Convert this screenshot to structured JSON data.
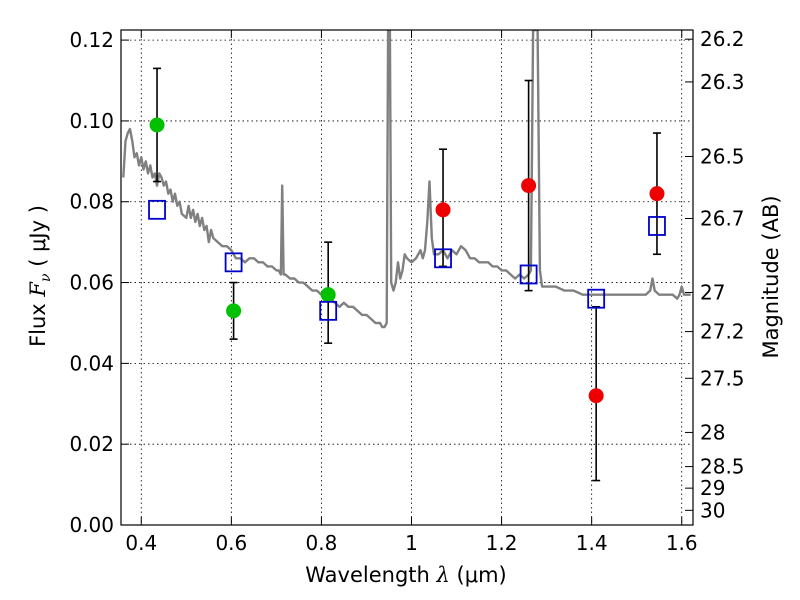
{
  "chart_data": {
    "type": "scatter",
    "xlabel_prefix": "Wavelength",
    "xlabel_symbol": "λ",
    "xlabel_unit": "(μm)",
    "ylabel_prefix": "Flux",
    "ylabel_symbol": "F",
    "ylabel_subscript": "ν",
    "ylabel_unit": "( μJy )",
    "y2label": "Magnitude (AB)",
    "xlim": [
      0.355,
      1.625
    ],
    "ylim": [
      0.0,
      0.1225
    ],
    "grid": true,
    "x_ticks": [
      {
        "value": 0.4,
        "label": "0.4"
      },
      {
        "value": 0.6,
        "label": "0.6"
      },
      {
        "value": 0.8,
        "label": "0.8"
      },
      {
        "value": 1.0,
        "label": "1"
      },
      {
        "value": 1.2,
        "label": "1.2"
      },
      {
        "value": 1.4,
        "label": "1.4"
      },
      {
        "value": 1.6,
        "label": "1.6"
      }
    ],
    "y_ticks": [
      {
        "value": 0.0,
        "label": "0.00"
      },
      {
        "value": 0.02,
        "label": "0.02"
      },
      {
        "value": 0.04,
        "label": "0.04"
      },
      {
        "value": 0.06,
        "label": "0.06"
      },
      {
        "value": 0.08,
        "label": "0.08"
      },
      {
        "value": 0.1,
        "label": "0.10"
      },
      {
        "value": 0.12,
        "label": "0.12"
      }
    ],
    "mag_ticks": [
      {
        "value": 26.2,
        "label": "26.2"
      },
      {
        "value": 26.3,
        "label": "26.3"
      },
      {
        "value": 26.5,
        "label": "26.5"
      },
      {
        "value": 26.7,
        "label": "26.7"
      },
      {
        "value": 27.0,
        "label": "27"
      },
      {
        "value": 27.2,
        "label": "27.2"
      },
      {
        "value": 27.5,
        "label": "27.5"
      },
      {
        "value": 28.0,
        "label": "28"
      },
      {
        "value": 28.5,
        "label": "28.5"
      },
      {
        "value": 29.0,
        "label": "29"
      },
      {
        "value": 30.0,
        "label": "30"
      }
    ],
    "model_spectrum": {
      "name": "model SED",
      "color": "#808080",
      "points": [
        [
          0.36,
          0.086
        ],
        [
          0.365,
          0.095
        ],
        [
          0.37,
          0.097
        ],
        [
          0.375,
          0.098
        ],
        [
          0.38,
          0.095
        ],
        [
          0.385,
          0.091
        ],
        [
          0.39,
          0.092
        ],
        [
          0.395,
          0.089
        ],
        [
          0.4,
          0.091
        ],
        [
          0.405,
          0.088
        ],
        [
          0.41,
          0.09
        ],
        [
          0.415,
          0.087
        ],
        [
          0.42,
          0.089
        ],
        [
          0.425,
          0.086
        ],
        [
          0.43,
          0.087
        ],
        [
          0.435,
          0.084
        ],
        [
          0.44,
          0.087
        ],
        [
          0.445,
          0.086
        ],
        [
          0.45,
          0.084
        ],
        [
          0.455,
          0.085
        ],
        [
          0.46,
          0.082
        ],
        [
          0.465,
          0.083
        ],
        [
          0.47,
          0.08
        ],
        [
          0.475,
          0.082
        ],
        [
          0.48,
          0.079
        ],
        [
          0.485,
          0.08
        ],
        [
          0.49,
          0.077
        ],
        [
          0.5,
          0.076
        ],
        [
          0.505,
          0.079
        ],
        [
          0.51,
          0.076
        ],
        [
          0.515,
          0.078
        ],
        [
          0.52,
          0.075
        ],
        [
          0.525,
          0.077
        ],
        [
          0.53,
          0.074
        ],
        [
          0.535,
          0.076
        ],
        [
          0.54,
          0.073
        ],
        [
          0.545,
          0.074
        ],
        [
          0.55,
          0.07
        ],
        [
          0.555,
          0.073
        ],
        [
          0.56,
          0.071
        ],
        [
          0.57,
          0.07
        ],
        [
          0.58,
          0.069
        ],
        [
          0.59,
          0.069
        ],
        [
          0.6,
          0.068
        ],
        [
          0.61,
          0.066
        ],
        [
          0.62,
          0.066
        ],
        [
          0.63,
          0.065
        ],
        [
          0.64,
          0.066
        ],
        [
          0.65,
          0.066
        ],
        [
          0.66,
          0.065
        ],
        [
          0.67,
          0.065
        ],
        [
          0.68,
          0.064
        ],
        [
          0.69,
          0.064
        ],
        [
          0.7,
          0.063
        ],
        [
          0.705,
          0.063
        ],
        [
          0.71,
          0.062
        ],
        [
          0.713,
          0.084
        ],
        [
          0.716,
          0.062
        ],
        [
          0.72,
          0.062
        ],
        [
          0.73,
          0.061
        ],
        [
          0.74,
          0.061
        ],
        [
          0.75,
          0.06
        ],
        [
          0.76,
          0.06
        ],
        [
          0.77,
          0.059
        ],
        [
          0.78,
          0.058
        ],
        [
          0.79,
          0.058
        ],
        [
          0.8,
          0.057
        ],
        [
          0.81,
          0.057
        ],
        [
          0.82,
          0.056
        ],
        [
          0.83,
          0.055
        ],
        [
          0.84,
          0.054
        ],
        [
          0.85,
          0.055
        ],
        [
          0.86,
          0.054
        ],
        [
          0.87,
          0.054
        ],
        [
          0.88,
          0.053
        ],
        [
          0.89,
          0.052
        ],
        [
          0.9,
          0.052
        ],
        [
          0.91,
          0.051
        ],
        [
          0.92,
          0.05
        ],
        [
          0.93,
          0.05
        ],
        [
          0.935,
          0.049
        ],
        [
          0.94,
          0.049
        ],
        [
          0.945,
          0.05
        ],
        [
          0.948,
          0.1225
        ],
        [
          0.952,
          0.1225
        ],
        [
          0.955,
          0.06
        ],
        [
          0.96,
          0.058
        ],
        [
          0.965,
          0.06
        ],
        [
          0.97,
          0.065
        ],
        [
          0.975,
          0.061
        ],
        [
          0.98,
          0.063
        ],
        [
          0.985,
          0.067
        ],
        [
          0.99,
          0.066
        ],
        [
          1.0,
          0.065
        ],
        [
          1.01,
          0.066
        ],
        [
          1.02,
          0.068
        ],
        [
          1.025,
          0.066
        ],
        [
          1.03,
          0.068
        ],
        [
          1.035,
          0.075
        ],
        [
          1.04,
          0.085
        ],
        [
          1.045,
          0.071
        ],
        [
          1.05,
          0.067
        ],
        [
          1.06,
          0.067
        ],
        [
          1.07,
          0.068
        ],
        [
          1.08,
          0.066
        ],
        [
          1.09,
          0.068
        ],
        [
          1.1,
          0.067
        ],
        [
          1.11,
          0.069
        ],
        [
          1.12,
          0.068
        ],
        [
          1.13,
          0.066
        ],
        [
          1.14,
          0.066
        ],
        [
          1.15,
          0.065
        ],
        [
          1.16,
          0.065
        ],
        [
          1.17,
          0.065
        ],
        [
          1.18,
          0.064
        ],
        [
          1.19,
          0.064
        ],
        [
          1.2,
          0.063
        ],
        [
          1.21,
          0.063
        ],
        [
          1.22,
          0.062
        ],
        [
          1.23,
          0.061
        ],
        [
          1.24,
          0.062
        ],
        [
          1.25,
          0.061
        ],
        [
          1.26,
          0.062
        ],
        [
          1.265,
          0.063
        ],
        [
          1.27,
          0.1225
        ],
        [
          1.28,
          0.1225
        ],
        [
          1.285,
          0.063
        ],
        [
          1.29,
          0.059
        ],
        [
          1.3,
          0.059
        ],
        [
          1.32,
          0.059
        ],
        [
          1.34,
          0.058
        ],
        [
          1.36,
          0.058
        ],
        [
          1.38,
          0.057
        ],
        [
          1.4,
          0.057
        ],
        [
          1.42,
          0.057
        ],
        [
          1.44,
          0.057
        ],
        [
          1.46,
          0.057
        ],
        [
          1.48,
          0.057
        ],
        [
          1.5,
          0.057
        ],
        [
          1.52,
          0.057
        ],
        [
          1.53,
          0.058
        ],
        [
          1.535,
          0.061
        ],
        [
          1.54,
          0.058
        ],
        [
          1.55,
          0.057
        ],
        [
          1.56,
          0.057
        ],
        [
          1.57,
          0.057
        ],
        [
          1.58,
          0.057
        ],
        [
          1.59,
          0.056
        ],
        [
          1.595,
          0.057
        ],
        [
          1.6,
          0.059
        ],
        [
          1.605,
          0.057
        ],
        [
          1.61,
          0.057
        ],
        [
          1.62,
          0.057
        ]
      ]
    },
    "series": [
      {
        "name": "observed-green",
        "color": "#00c000",
        "marker": "circle",
        "points": [
          {
            "x": 0.435,
            "y": 0.099,
            "yerr_low": 0.085,
            "yerr_high": 0.113
          },
          {
            "x": 0.605,
            "y": 0.053,
            "yerr_low": 0.046,
            "yerr_high": 0.06
          },
          {
            "x": 0.815,
            "y": 0.057,
            "yerr_low": 0.045,
            "yerr_high": 0.07
          }
        ]
      },
      {
        "name": "observed-red",
        "color": "#ee0000",
        "marker": "circle",
        "points": [
          {
            "x": 1.07,
            "y": 0.078,
            "yerr_low": 0.064,
            "yerr_high": 0.093
          },
          {
            "x": 1.26,
            "y": 0.084,
            "yerr_low": 0.058,
            "yerr_high": 0.11
          },
          {
            "x": 1.41,
            "y": 0.032,
            "yerr_low": 0.011,
            "yerr_high": 0.054
          },
          {
            "x": 1.545,
            "y": 0.082,
            "yerr_low": 0.067,
            "yerr_high": 0.097
          }
        ]
      },
      {
        "name": "model-photometry",
        "color": "#0000cc",
        "marker": "square-open",
        "points": [
          {
            "x": 0.435,
            "y": 0.078
          },
          {
            "x": 0.605,
            "y": 0.065
          },
          {
            "x": 0.815,
            "y": 0.053
          },
          {
            "x": 1.07,
            "y": 0.066
          },
          {
            "x": 1.26,
            "y": 0.062
          },
          {
            "x": 1.41,
            "y": 0.056
          },
          {
            "x": 1.545,
            "y": 0.074
          }
        ]
      }
    ]
  }
}
